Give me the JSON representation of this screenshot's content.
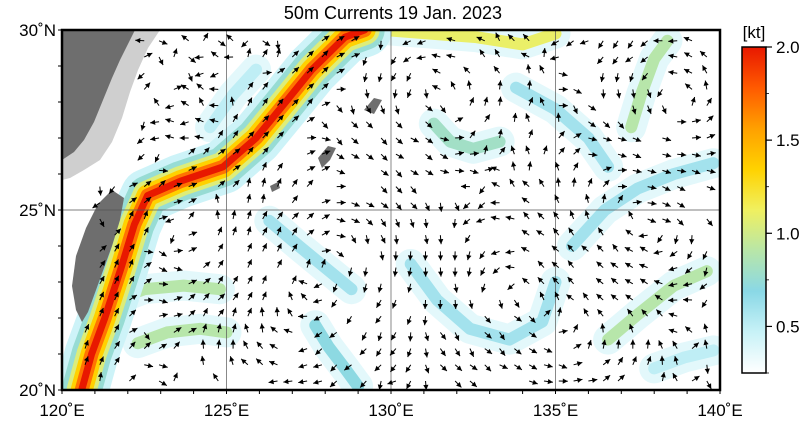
{
  "map": {
    "title": "50m Currents  19 Jan. 2023",
    "lon_range": [
      120,
      140
    ],
    "lat_range": [
      20,
      30
    ],
    "x_ticks": [
      {
        "value": 120,
        "label": "120˚E"
      },
      {
        "value": 125,
        "label": "125˚E"
      },
      {
        "value": 130,
        "label": "130˚E"
      },
      {
        "value": 135,
        "label": "135˚E"
      },
      {
        "value": 140,
        "label": "140˚E"
      }
    ],
    "y_ticks": [
      {
        "value": 20,
        "label": "20˚N"
      },
      {
        "value": 25,
        "label": "25˚N"
      },
      {
        "value": 30,
        "label": "30˚N"
      }
    ],
    "grid": true,
    "land_color": "#6e6e6e",
    "shelf_color": "#cfcfcf",
    "arrow_color": "#000000"
  },
  "colorbar": {
    "unit": "[kt]",
    "range": [
      0.25,
      2.0
    ],
    "ticks": [
      {
        "value": 0.5,
        "label": "0.5"
      },
      {
        "value": 1.0,
        "label": "1.0"
      },
      {
        "value": 1.5,
        "label": "1.5"
      },
      {
        "value": 2.0,
        "label": "2.0"
      }
    ],
    "stops": [
      "#ffffff",
      "#c8f2f7",
      "#8ad8e6",
      "#b8e6a8",
      "#f0f060",
      "#ffd200",
      "#ffa000",
      "#ff5a00",
      "#e81800"
    ]
  },
  "currents": {
    "kuroshio": [
      [
        120.6,
        20.0
      ],
      [
        120.9,
        21.0
      ],
      [
        121.3,
        22.0
      ],
      [
        121.8,
        23.4
      ],
      [
        122.2,
        24.6
      ],
      [
        122.6,
        25.4
      ],
      [
        123.6,
        25.8
      ],
      [
        124.9,
        26.2
      ],
      [
        125.9,
        27.0
      ],
      [
        126.8,
        28.0
      ],
      [
        127.6,
        28.9
      ],
      [
        128.6,
        29.8
      ],
      [
        129.2,
        30.0
      ]
    ],
    "other_bands": [
      {
        "strength": 1.1,
        "path": [
          [
            129.8,
            30.0
          ],
          [
            131.2,
            29.9
          ],
          [
            132.6,
            29.8
          ],
          [
            134.0,
            29.6
          ],
          [
            135.0,
            29.9
          ]
        ]
      },
      {
        "strength": 0.9,
        "path": [
          [
            121.6,
            22.5
          ],
          [
            122.5,
            22.8
          ],
          [
            123.7,
            22.9
          ],
          [
            124.8,
            22.8
          ]
        ]
      },
      {
        "strength": 0.9,
        "path": [
          [
            122.3,
            21.3
          ],
          [
            123.2,
            21.6
          ],
          [
            124.2,
            21.7
          ],
          [
            125.0,
            21.6
          ]
        ]
      },
      {
        "strength": 0.9,
        "path": [
          [
            136.6,
            21.4
          ],
          [
            137.5,
            22.1
          ],
          [
            138.6,
            22.9
          ],
          [
            139.6,
            23.3
          ]
        ]
      },
      {
        "strength": 0.9,
        "path": [
          [
            137.3,
            27.3
          ],
          [
            137.6,
            28.2
          ],
          [
            138.0,
            29.2
          ],
          [
            138.4,
            29.7
          ]
        ]
      },
      {
        "strength": 0.8,
        "path": [
          [
            131.3,
            27.4
          ],
          [
            131.8,
            26.9
          ],
          [
            132.5,
            26.7
          ],
          [
            133.3,
            26.9
          ]
        ]
      },
      {
        "strength": 0.7,
        "path": [
          [
            127.7,
            21.8
          ],
          [
            128.1,
            21.2
          ],
          [
            128.6,
            20.6
          ],
          [
            129.0,
            20.1
          ]
        ]
      },
      {
        "strength": 0.6,
        "path": [
          [
            130.6,
            23.5
          ],
          [
            131.4,
            22.5
          ],
          [
            132.4,
            21.7
          ],
          [
            133.6,
            21.4
          ],
          [
            134.6,
            21.9
          ],
          [
            135.0,
            23.0
          ]
        ]
      },
      {
        "strength": 0.6,
        "path": [
          [
            126.3,
            24.7
          ],
          [
            127.2,
            24.0
          ],
          [
            128.0,
            23.4
          ],
          [
            128.8,
            22.8
          ]
        ]
      },
      {
        "strength": 0.6,
        "path": [
          [
            135.5,
            24.0
          ],
          [
            136.5,
            25.0
          ],
          [
            137.5,
            25.6
          ],
          [
            138.6,
            26.0
          ],
          [
            139.8,
            26.3
          ]
        ]
      },
      {
        "strength": 0.6,
        "path": [
          [
            133.8,
            28.4
          ],
          [
            135.0,
            27.8
          ],
          [
            136.0,
            27.0
          ],
          [
            136.6,
            26.2
          ]
        ]
      },
      {
        "strength": 0.5,
        "path": [
          [
            124.5,
            27.3
          ],
          [
            125.2,
            28.2
          ],
          [
            125.9,
            28.9
          ]
        ]
      },
      {
        "strength": 0.5,
        "path": [
          [
            138.0,
            20.6
          ],
          [
            138.9,
            20.9
          ],
          [
            139.8,
            21.1
          ]
        ]
      }
    ]
  }
}
